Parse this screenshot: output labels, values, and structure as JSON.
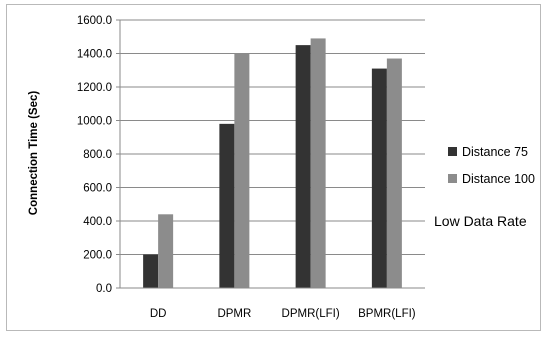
{
  "chart_data": {
    "type": "bar",
    "title": "",
    "xlabel": "",
    "ylabel": "Connection Time (Sec)",
    "ylim": [
      0,
      1600
    ],
    "yticks": [
      0,
      200,
      400,
      600,
      800,
      1000,
      1200,
      1400,
      1600
    ],
    "ytick_labels": [
      "0.0",
      "200.0",
      "400.0",
      "600.0",
      "800.0",
      "1000.0",
      "1200.0",
      "1400.0",
      "1600.0"
    ],
    "grid": true,
    "legend_position": "right",
    "categories": [
      "DD",
      "DPMR",
      "DPMR(LFI)",
      "BPMR(LFI)"
    ],
    "series": [
      {
        "name": "Distance 75",
        "color": "#333333",
        "values": [
          200,
          980,
          1450,
          1310
        ]
      },
      {
        "name": "Distance 100",
        "color": "#8c8c8c",
        "values": [
          440,
          1400,
          1490,
          1370
        ]
      }
    ],
    "annotation": "Low Data Rate"
  }
}
